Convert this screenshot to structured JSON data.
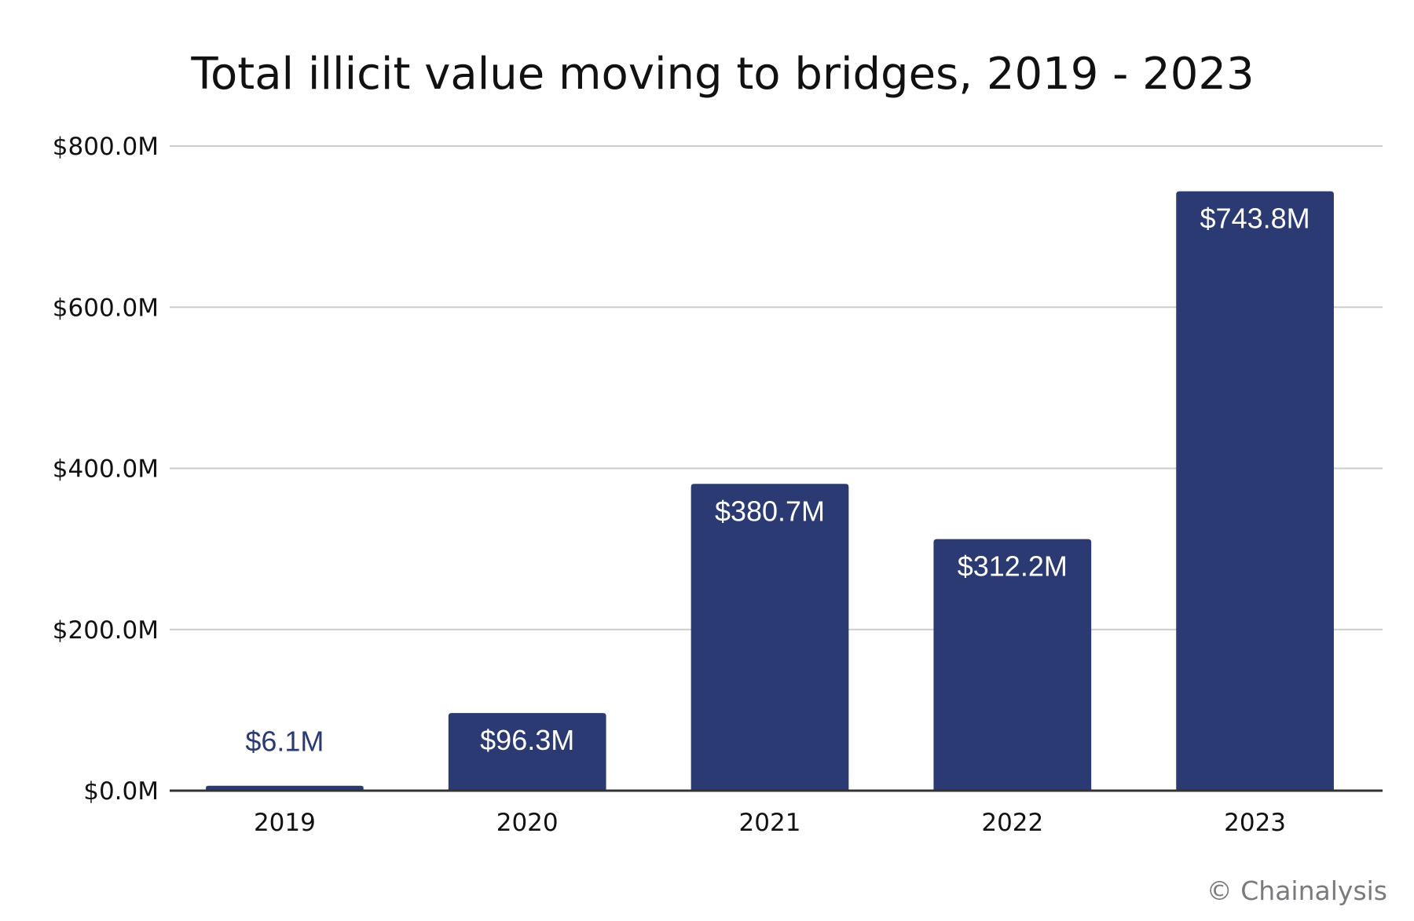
{
  "chart_data": {
    "type": "bar",
    "title": "Total illicit value moving to bridges, 2019 - 2023",
    "xlabel": "",
    "ylabel": "",
    "categories": [
      "2019",
      "2020",
      "2021",
      "2022",
      "2023"
    ],
    "values": [
      6.1,
      96.3,
      380.7,
      312.2,
      743.8
    ],
    "value_unit": "$M",
    "data_labels": [
      "$6.1M",
      "$96.3M",
      "$380.7M",
      "$312.2M",
      "$743.8M"
    ],
    "ylim": [
      0,
      800
    ],
    "yticks": [
      0,
      200,
      400,
      600,
      800
    ],
    "ytick_labels": [
      "$0.0M",
      "$200.0M",
      "$400.0M",
      "$600.0M",
      "$800.0M"
    ],
    "grid": true,
    "legend": "none",
    "bar_color": "#2b3a73",
    "gridline_color": "#cccccc",
    "axis_color": "#333333",
    "label_inside_color": "#ffffff",
    "label_outside_color": "#2b3a73"
  },
  "credit": "© Chainalysis"
}
